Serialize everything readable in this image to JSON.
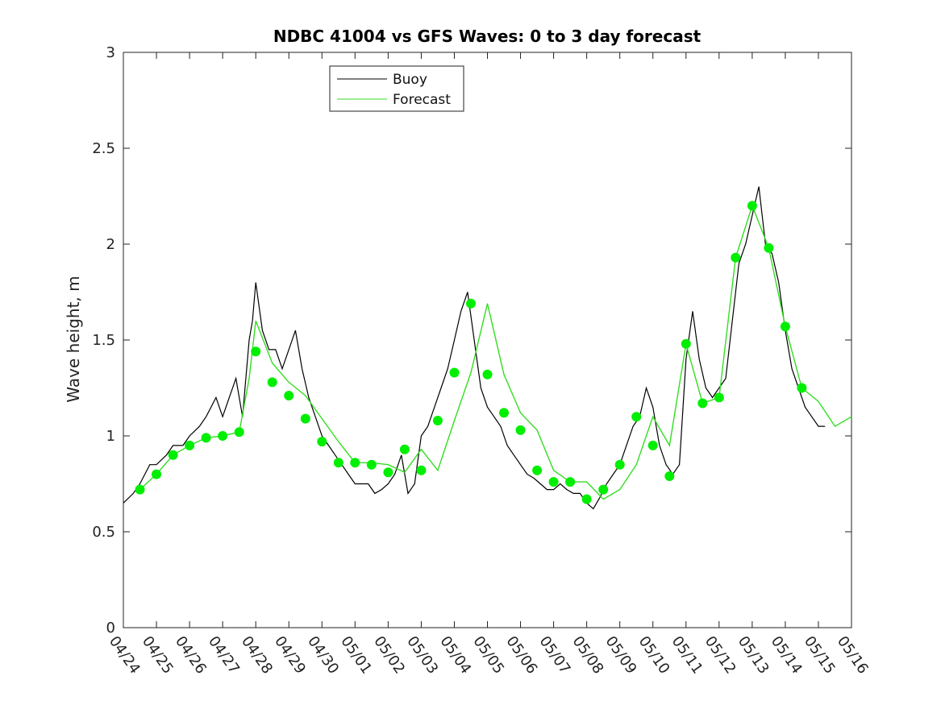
{
  "chart_data": {
    "type": "line",
    "title": "NDBC 41004 vs GFS Waves: 0 to 3 day forecast",
    "ylabel": "Wave height, m",
    "xlabel": "",
    "ylim": [
      0,
      3
    ],
    "yticks": [
      "0",
      "0.5",
      "1",
      "1.5",
      "2",
      "2.5",
      "3"
    ],
    "xlim": [
      0,
      22
    ],
    "xticks": [
      "04/24",
      "04/25",
      "04/26",
      "04/27",
      "04/28",
      "04/29",
      "04/30",
      "05/01",
      "05/02",
      "05/03",
      "05/04",
      "05/05",
      "05/06",
      "05/07",
      "05/08",
      "05/09",
      "05/10",
      "05/11",
      "05/12",
      "05/13",
      "05/14",
      "05/15",
      "05/16"
    ],
    "legend": {
      "placement": "top-left",
      "entries": [
        "Buoy",
        "Forecast"
      ]
    },
    "colors": {
      "buoy": "#000000",
      "forecast": "#33dd22",
      "markers": "#00ee00"
    },
    "series": [
      {
        "name": "Buoy",
        "x": [
          0,
          0.3,
          0.5,
          0.8,
          1.0,
          1.3,
          1.5,
          1.8,
          2.0,
          2.3,
          2.5,
          2.8,
          3.0,
          3.2,
          3.4,
          3.6,
          3.8,
          3.9,
          4.0,
          4.2,
          4.4,
          4.6,
          4.8,
          5.0,
          5.2,
          5.4,
          5.6,
          5.8,
          6.0,
          6.2,
          6.4,
          6.6,
          6.8,
          7.0,
          7.2,
          7.4,
          7.6,
          7.8,
          8.0,
          8.2,
          8.4,
          8.6,
          8.8,
          9.0,
          9.2,
          9.4,
          9.6,
          9.8,
          10.0,
          10.2,
          10.4,
          10.6,
          10.8,
          11.0,
          11.2,
          11.4,
          11.6,
          11.8,
          12.0,
          12.2,
          12.4,
          12.6,
          12.8,
          13.0,
          13.2,
          13.4,
          13.6,
          13.8,
          14.0,
          14.2,
          14.4,
          14.6,
          14.8,
          15.0,
          15.2,
          15.4,
          15.6,
          15.8,
          16.0,
          16.2,
          16.4,
          16.6,
          16.8,
          17.0,
          17.2,
          17.4,
          17.6,
          17.8,
          18.0,
          18.2,
          18.4,
          18.6,
          18.8,
          19.0,
          19.2,
          19.4,
          19.6,
          19.8,
          20.0,
          20.2,
          20.4,
          20.6,
          20.8,
          21.0,
          21.2
        ],
        "y": [
          0.65,
          0.7,
          0.75,
          0.85,
          0.85,
          0.9,
          0.95,
          0.95,
          1.0,
          1.05,
          1.1,
          1.2,
          1.1,
          1.2,
          1.3,
          1.1,
          1.5,
          1.6,
          1.8,
          1.55,
          1.45,
          1.45,
          1.35,
          1.45,
          1.55,
          1.35,
          1.2,
          1.1,
          1.0,
          0.95,
          0.9,
          0.85,
          0.8,
          0.75,
          0.75,
          0.75,
          0.7,
          0.72,
          0.75,
          0.8,
          0.9,
          0.7,
          0.75,
          1.0,
          1.05,
          1.15,
          1.25,
          1.35,
          1.5,
          1.65,
          1.75,
          1.5,
          1.25,
          1.15,
          1.1,
          1.05,
          0.95,
          0.9,
          0.85,
          0.8,
          0.78,
          0.75,
          0.72,
          0.72,
          0.75,
          0.72,
          0.7,
          0.7,
          0.65,
          0.62,
          0.68,
          0.75,
          0.8,
          0.85,
          0.95,
          1.05,
          1.1,
          1.25,
          1.15,
          0.95,
          0.85,
          0.8,
          0.85,
          1.4,
          1.65,
          1.4,
          1.25,
          1.2,
          1.25,
          1.3,
          1.6,
          1.9,
          2.0,
          2.15,
          2.3,
          2.0,
          1.95,
          1.8,
          1.55,
          1.35,
          1.25,
          1.15,
          1.1,
          1.05,
          1.05
        ]
      },
      {
        "name": "Forecast",
        "x": [
          0.5,
          1.0,
          1.5,
          2.0,
          2.5,
          3.0,
          3.5,
          3.8,
          4.0,
          4.5,
          5.0,
          5.5,
          6.0,
          6.5,
          7.0,
          7.5,
          8.0,
          8.5,
          9.0,
          9.5,
          10.0,
          10.5,
          11.0,
          11.5,
          12.0,
          12.5,
          13.0,
          13.5,
          14.0,
          14.5,
          15.0,
          15.5,
          16.0,
          16.5,
          17.0,
          17.5,
          18.0,
          18.5,
          19.0,
          19.5,
          20.0,
          20.5,
          21.0,
          21.5,
          22.0
        ],
        "y": [
          0.72,
          0.8,
          0.9,
          0.95,
          0.99,
          1.0,
          1.02,
          1.3,
          1.6,
          1.38,
          1.28,
          1.21,
          1.09,
          0.97,
          0.86,
          0.86,
          0.85,
          0.81,
          0.93,
          0.82,
          1.08,
          1.33,
          1.69,
          1.32,
          1.12,
          1.03,
          0.82,
          0.76,
          0.76,
          0.67,
          0.72,
          0.85,
          1.1,
          0.95,
          1.48,
          1.17,
          1.2,
          1.93,
          2.2,
          1.98,
          1.57,
          1.25,
          1.18,
          1.05,
          1.1
        ]
      },
      {
        "name": "",
        "type": "scatter",
        "x": [
          0.5,
          1.0,
          1.5,
          2.0,
          2.5,
          3.0,
          3.5,
          4.0,
          4.5,
          5.0,
          5.5,
          6.0,
          6.5,
          7.0,
          7.5,
          8.0,
          8.5,
          9.0,
          9.5,
          10.0,
          10.5,
          11.0,
          11.5,
          12.0,
          12.5,
          13.0,
          13.5,
          14.0,
          14.5,
          15.0,
          15.5,
          16.0,
          16.5,
          17.0,
          17.5,
          18.0,
          18.5,
          19.0,
          19.5,
          20.0,
          20.5
        ],
        "y": [
          0.72,
          0.8,
          0.9,
          0.95,
          0.99,
          1.0,
          1.02,
          1.44,
          1.28,
          1.21,
          1.09,
          0.97,
          0.86,
          0.86,
          0.85,
          0.81,
          0.93,
          0.82,
          1.08,
          1.33,
          1.69,
          1.32,
          1.12,
          1.03,
          0.82,
          0.76,
          0.76,
          0.67,
          0.72,
          0.85,
          1.1,
          0.95,
          0.79,
          1.48,
          1.17,
          1.2,
          1.93,
          2.2,
          1.98,
          1.57,
          1.25
        ]
      }
    ]
  }
}
